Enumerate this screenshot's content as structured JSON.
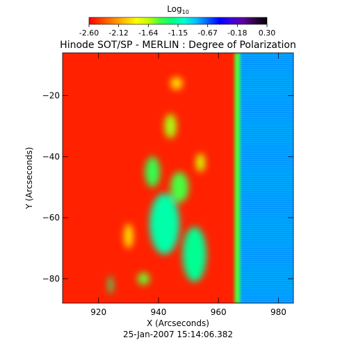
{
  "chart_data": {
    "type": "heatmap",
    "title": "Hinode SOT/SP - MERLIN : Degree of Polarization",
    "subtitle": "25-Jan-2007 15:14:06.382",
    "xlabel": "X (Arcseconds)",
    "ylabel": "Y (Arcseconds)",
    "xlim": [
      908,
      985
    ],
    "ylim": [
      -88,
      -6
    ],
    "x_ticks": [
      920,
      940,
      960,
      980
    ],
    "y_ticks": [
      -20,
      -40,
      -60,
      -80
    ],
    "colorbar": {
      "title_base": "Log",
      "title_sub": "10",
      "tick_labels": [
        "-2.60",
        "-2.12",
        "-1.64",
        "-1.15",
        "-0.67",
        "-0.18",
        "0.30"
      ],
      "range": [
        -2.6,
        0.3
      ],
      "colors": [
        "#ff0000",
        "#ff4000",
        "#ff8000",
        "#ffc000",
        "#ffff00",
        "#c0ff00",
        "#40ff40",
        "#00ff80",
        "#00ffd0",
        "#00c0ff",
        "#0060ff",
        "#0000ff",
        "#4000e0",
        "#6000a0",
        "#300040",
        "#000000"
      ]
    },
    "limb_x": 966.5,
    "off_limb_value": -0.78,
    "limb_value": -1.45,
    "disk_background_value": -2.5,
    "features": [
      {
        "x": 942,
        "y": -62,
        "w": 10,
        "h": 20,
        "value": -1.15
      },
      {
        "x": 952,
        "y": -72,
        "w": 8,
        "h": 18,
        "value": -1.2
      },
      {
        "x": 938,
        "y": -45,
        "w": 5,
        "h": 10,
        "value": -1.4
      },
      {
        "x": 947,
        "y": -50,
        "w": 6,
        "h": 10,
        "value": -1.45
      },
      {
        "x": 944,
        "y": -30,
        "w": 4,
        "h": 8,
        "value": -1.6
      },
      {
        "x": 935,
        "y": -80,
        "w": 4,
        "h": 4,
        "value": -1.5
      },
      {
        "x": 924,
        "y": -82,
        "w": 1.5,
        "h": 6,
        "value": -1.3
      },
      {
        "x": 954,
        "y": -42,
        "w": 3,
        "h": 6,
        "value": -1.7
      },
      {
        "x": 930,
        "y": -66,
        "w": 3,
        "h": 8,
        "value": -1.9
      },
      {
        "x": 946,
        "y": -16,
        "w": 4,
        "h": 4,
        "value": -1.9
      }
    ]
  }
}
